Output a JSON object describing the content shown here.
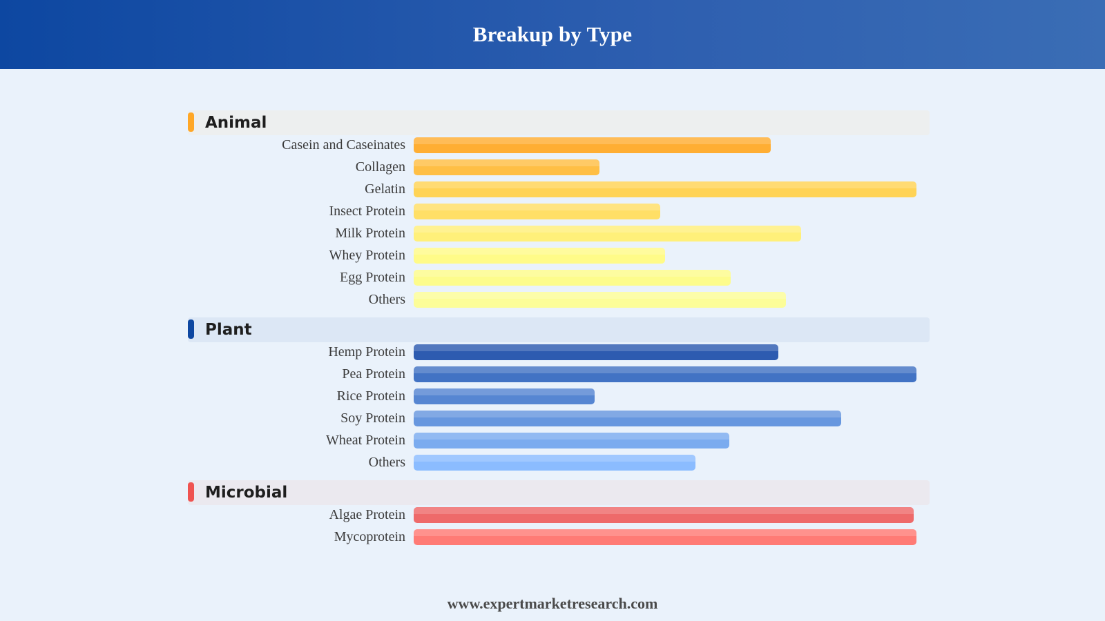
{
  "header": {
    "title": "Breakup by Type"
  },
  "footer": {
    "website": "www.expertmarketresearch.com"
  },
  "chart_data": {
    "type": "bar",
    "orientation": "horizontal",
    "title": "Breakup by Type",
    "xlabel": "",
    "ylabel": "",
    "axis_visible": false,
    "grid": false,
    "xlim": [
      0,
      100
    ],
    "groups": [
      {
        "name": "Animal",
        "accent_color": "#ffa726",
        "band_color": "#edefef",
        "categories": [
          "Casein and Caseinates",
          "Collagen",
          "Gelatin",
          "Insect Protein",
          "Milk Protein",
          "Whey Protein",
          "Egg Protein",
          "Others"
        ],
        "values": [
          71,
          37,
          100,
          49,
          77,
          50,
          63,
          74
        ],
        "colors": [
          "#ffae33",
          "#ffbf45",
          "#ffd355",
          "#ffdf66",
          "#fff07a",
          "#fffb88",
          "#fdfc8c",
          "#fcfd98"
        ]
      },
      {
        "name": "Plant",
        "accent_color": "#0d47a1",
        "band_color": "#dce7f5",
        "categories": [
          "Hemp Protein",
          "Pea Protein",
          "Rice Protein",
          "Soy Protein",
          "Wheat Protein",
          "Others"
        ],
        "values": [
          72.5,
          100,
          36,
          85,
          62.8,
          56
        ],
        "colors": [
          "#2d5bb0",
          "#4273c4",
          "#5686d2",
          "#6797df",
          "#7aabef",
          "#8bbcff"
        ]
      },
      {
        "name": "Microbial",
        "accent_color": "#ef5350",
        "band_color": "#ebe9ef",
        "categories": [
          "Algae Protein",
          "Mycoprotein"
        ],
        "values": [
          99.5,
          100
        ],
        "colors": [
          "#ee6a6a",
          "#ff7b75"
        ]
      }
    ]
  }
}
